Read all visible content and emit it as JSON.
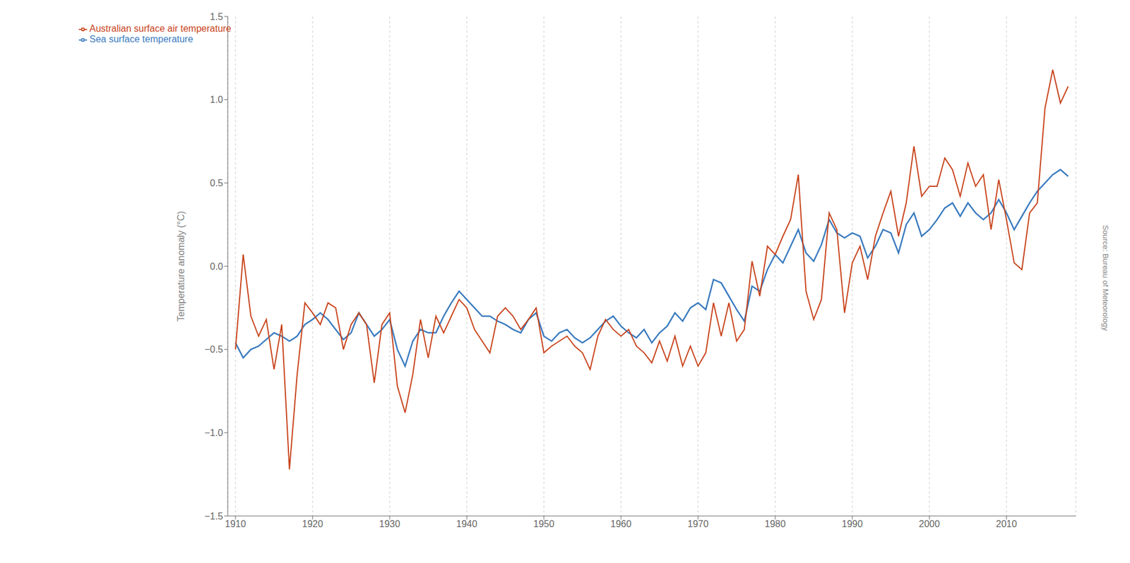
{
  "chart_data": {
    "type": "line",
    "y_label": "Temperature anomaly (°C)",
    "annotations": [
      "Source: Bureau of Meteorology"
    ],
    "x": [
      1910,
      1911,
      1912,
      1913,
      1914,
      1915,
      1916,
      1917,
      1918,
      1919,
      1920,
      1921,
      1922,
      1923,
      1924,
      1925,
      1926,
      1927,
      1928,
      1929,
      1930,
      1931,
      1932,
      1933,
      1934,
      1935,
      1936,
      1937,
      1938,
      1939,
      1940,
      1941,
      1942,
      1943,
      1944,
      1945,
      1946,
      1947,
      1948,
      1949,
      1950,
      1951,
      1952,
      1953,
      1954,
      1955,
      1956,
      1957,
      1958,
      1959,
      1960,
      1961,
      1962,
      1963,
      1964,
      1965,
      1966,
      1967,
      1968,
      1969,
      1970,
      1971,
      1972,
      1973,
      1974,
      1975,
      1976,
      1977,
      1978,
      1979,
      1980,
      1981,
      1982,
      1983,
      1984,
      1985,
      1986,
      1987,
      1988,
      1989,
      1990,
      1991,
      1992,
      1993,
      1994,
      1995,
      1996,
      1997,
      1998,
      1999,
      2000,
      2001,
      2002,
      2003,
      2004,
      2005,
      2006,
      2007,
      2008,
      2009,
      2010,
      2011,
      2012,
      2013,
      2014,
      2015,
      2016,
      2017,
      2018
    ],
    "series": [
      {
        "name": "Sea surface temperature",
        "color": "#3a7bbf",
        "values": [
          -0.46,
          -0.55,
          -0.5,
          -0.48,
          -0.44,
          -0.4,
          -0.42,
          -0.45,
          -0.42,
          -0.35,
          -0.32,
          -0.28,
          -0.32,
          -0.38,
          -0.44,
          -0.4,
          -0.28,
          -0.35,
          -0.42,
          -0.38,
          -0.32,
          -0.5,
          -0.6,
          -0.45,
          -0.38,
          -0.4,
          -0.4,
          -0.3,
          -0.22,
          -0.15,
          -0.2,
          -0.25,
          -0.3,
          -0.3,
          -0.33,
          -0.35,
          -0.38,
          -0.4,
          -0.32,
          -0.28,
          -0.42,
          -0.45,
          -0.4,
          -0.38,
          -0.43,
          -0.46,
          -0.43,
          -0.38,
          -0.33,
          -0.3,
          -0.36,
          -0.4,
          -0.43,
          -0.38,
          -0.46,
          -0.4,
          -0.36,
          -0.28,
          -0.33,
          -0.25,
          -0.22,
          -0.26,
          -0.08,
          -0.1,
          -0.18,
          -0.26,
          -0.33,
          -0.12,
          -0.15,
          -0.02,
          0.07,
          0.02,
          0.12,
          0.22,
          0.08,
          0.03,
          0.13,
          0.28,
          0.2,
          0.17,
          0.2,
          0.18,
          0.05,
          0.12,
          0.22,
          0.2,
          0.08,
          0.25,
          0.32,
          0.18,
          0.22,
          0.28,
          0.35,
          0.38,
          0.3,
          0.38,
          0.32,
          0.28,
          0.32,
          0.4,
          0.32,
          0.22,
          0.3,
          0.38,
          0.45,
          0.5,
          0.55,
          0.58,
          0.54
        ]
      },
      {
        "name": "Australian surface air temperature",
        "color": "#c8431a",
        "values": [
          -0.5,
          0.07,
          -0.3,
          -0.42,
          -0.32,
          -0.62,
          -0.35,
          -1.22,
          -0.65,
          -0.22,
          -0.28,
          -0.35,
          -0.22,
          -0.25,
          -0.5,
          -0.35,
          -0.28,
          -0.35,
          -0.7,
          -0.35,
          -0.28,
          -0.72,
          -0.88,
          -0.65,
          -0.32,
          -0.55,
          -0.3,
          -0.4,
          -0.3,
          -0.2,
          -0.25,
          -0.38,
          -0.45,
          -0.52,
          -0.3,
          -0.25,
          -0.3,
          -0.38,
          -0.32,
          -0.25,
          -0.52,
          -0.48,
          -0.45,
          -0.42,
          -0.48,
          -0.52,
          -0.62,
          -0.42,
          -0.32,
          -0.38,
          -0.42,
          -0.38,
          -0.48,
          -0.52,
          -0.58,
          -0.45,
          -0.57,
          -0.42,
          -0.6,
          -0.48,
          -0.6,
          -0.52,
          -0.22,
          -0.42,
          -0.22,
          -0.45,
          -0.38,
          0.03,
          -0.18,
          0.12,
          0.07,
          0.18,
          0.28,
          0.55,
          -0.15,
          -0.32,
          -0.2,
          0.32,
          0.22,
          -0.28,
          0.02,
          0.12,
          -0.08,
          0.18,
          0.32,
          0.45,
          0.18,
          0.38,
          0.72,
          0.42,
          0.48,
          0.48,
          0.65,
          0.58,
          0.42,
          0.62,
          0.48,
          0.55,
          0.22,
          0.52,
          0.28,
          0.02,
          -0.02,
          0.32,
          0.38,
          0.95,
          1.18,
          0.98,
          1.08
        ]
      }
    ],
    "xlim": [
      1909,
      2019
    ],
    "xticks": [
      1910,
      1920,
      1930,
      1940,
      1950,
      1960,
      1970,
      1980,
      1990,
      2000,
      2010
    ],
    "ylim": [
      -1.5,
      1.5
    ],
    "yticks": [
      {
        "value": -1.5,
        "label": "−1.5"
      },
      {
        "value": -1.0,
        "label": "−1.0"
      },
      {
        "value": -0.5,
        "label": "−0.5"
      },
      {
        "value": 0.0,
        "label": "0.0"
      },
      0.5,
      {
        "value": 1.0,
        "label": "1.0"
      },
      1.5
    ],
    "grid": "x",
    "legend": "upper left"
  }
}
